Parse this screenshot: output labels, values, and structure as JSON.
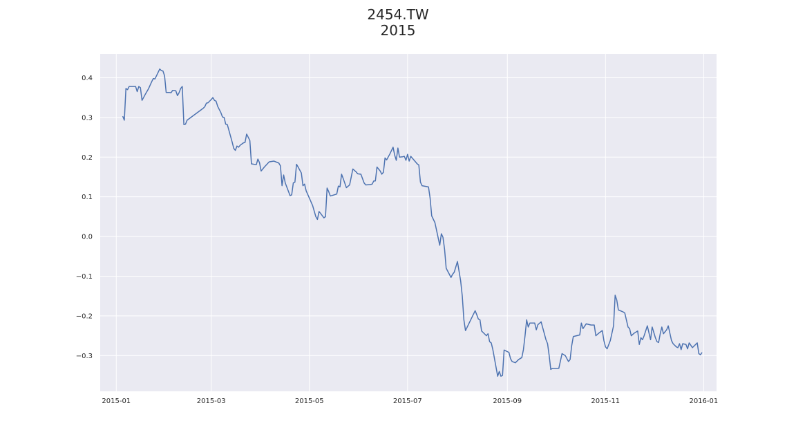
{
  "chart_data": {
    "type": "line",
    "title": "2454.TW",
    "subtitle": "2015",
    "xlabel": "",
    "ylabel": "",
    "xlim": [
      "2014-12-22",
      "2016-01-09"
    ],
    "ylim": [
      -0.39,
      0.46
    ],
    "x_ticks": [
      "2015-01",
      "2015-03",
      "2015-05",
      "2015-07",
      "2015-09",
      "2015-11",
      "2016-01"
    ],
    "y_ticks": [
      "0.4",
      "0.3",
      "0.2",
      "0.1",
      "0.0",
      "−0.1",
      "−0.2",
      "−0.3"
    ],
    "grid": true,
    "background_color": "#eaeaf2",
    "line_color": "#4c72b0",
    "series": [
      {
        "points": [
          [
            "2015-01-05",
            0.303
          ],
          [
            "2015-01-06",
            0.293
          ],
          [
            "2015-01-07",
            0.373
          ],
          [
            "2015-01-08",
            0.37
          ],
          [
            "2015-01-09",
            0.378
          ],
          [
            "2015-01-12",
            0.378
          ],
          [
            "2015-01-13",
            0.378
          ],
          [
            "2015-01-14",
            0.365
          ],
          [
            "2015-01-15",
            0.378
          ],
          [
            "2015-01-16",
            0.375
          ],
          [
            "2015-01-17",
            0.343
          ],
          [
            "2015-01-19",
            0.358
          ],
          [
            "2015-01-21",
            0.372
          ],
          [
            "2015-01-23",
            0.39
          ],
          [
            "2015-01-24",
            0.398
          ],
          [
            "2015-01-25",
            0.397
          ],
          [
            "2015-01-26",
            0.405
          ],
          [
            "2015-01-28",
            0.422
          ],
          [
            "2015-01-29",
            0.418
          ],
          [
            "2015-01-30",
            0.417
          ],
          [
            "2015-01-31",
            0.405
          ],
          [
            "2015-02-01",
            0.363
          ],
          [
            "2015-02-03",
            0.363
          ],
          [
            "2015-02-04",
            0.362
          ],
          [
            "2015-02-05",
            0.368
          ],
          [
            "2015-02-06",
            0.368
          ],
          [
            "2015-02-07",
            0.367
          ],
          [
            "2015-02-08",
            0.355
          ],
          [
            "2015-02-09",
            0.362
          ],
          [
            "2015-02-10",
            0.373
          ],
          [
            "2015-02-11",
            0.378
          ],
          [
            "2015-02-12",
            0.282
          ],
          [
            "2015-02-13",
            0.283
          ],
          [
            "2015-02-14",
            0.293
          ],
          [
            "2015-02-24",
            0.323
          ],
          [
            "2015-02-25",
            0.327
          ],
          [
            "2015-02-26",
            0.336
          ],
          [
            "2015-02-27",
            0.337
          ],
          [
            "2015-03-01",
            0.345
          ],
          [
            "2015-03-02",
            0.35
          ],
          [
            "2015-03-03",
            0.343
          ],
          [
            "2015-03-04",
            0.341
          ],
          [
            "2015-03-05",
            0.328
          ],
          [
            "2015-03-07",
            0.312
          ],
          [
            "2015-03-08",
            0.301
          ],
          [
            "2015-03-09",
            0.3
          ],
          [
            "2015-03-10",
            0.283
          ],
          [
            "2015-03-11",
            0.282
          ],
          [
            "2015-03-14",
            0.238
          ],
          [
            "2015-03-15",
            0.222
          ],
          [
            "2015-03-16",
            0.217
          ],
          [
            "2015-03-17",
            0.228
          ],
          [
            "2015-03-18",
            0.225
          ],
          [
            "2015-03-19",
            0.23
          ],
          [
            "2015-03-21",
            0.236
          ],
          [
            "2015-03-22",
            0.237
          ],
          [
            "2015-03-23",
            0.258
          ],
          [
            "2015-03-25",
            0.242
          ],
          [
            "2015-03-26",
            0.183
          ],
          [
            "2015-03-29",
            0.181
          ],
          [
            "2015-03-30",
            0.195
          ],
          [
            "2015-03-31",
            0.186
          ],
          [
            "2015-04-01",
            0.165
          ],
          [
            "2015-04-03",
            0.175
          ],
          [
            "2015-04-06",
            0.188
          ],
          [
            "2015-04-09",
            0.19
          ],
          [
            "2015-04-12",
            0.185
          ],
          [
            "2015-04-13",
            0.178
          ],
          [
            "2015-04-14",
            0.128
          ],
          [
            "2015-04-15",
            0.155
          ],
          [
            "2015-04-16",
            0.135
          ],
          [
            "2015-04-19",
            0.103
          ],
          [
            "2015-04-20",
            0.105
          ],
          [
            "2015-04-21",
            0.135
          ],
          [
            "2015-04-22",
            0.137
          ],
          [
            "2015-04-23",
            0.182
          ],
          [
            "2015-04-24",
            0.175
          ],
          [
            "2015-04-26",
            0.16
          ],
          [
            "2015-04-27",
            0.128
          ],
          [
            "2015-04-28",
            0.132
          ],
          [
            "2015-04-29",
            0.115
          ],
          [
            "2015-05-03",
            0.078
          ],
          [
            "2015-05-05",
            0.05
          ],
          [
            "2015-05-06",
            0.043
          ],
          [
            "2015-05-07",
            0.063
          ],
          [
            "2015-05-08",
            0.058
          ],
          [
            "2015-05-10",
            0.047
          ],
          [
            "2015-05-11",
            0.05
          ],
          [
            "2015-05-12",
            0.122
          ],
          [
            "2015-05-13",
            0.113
          ],
          [
            "2015-05-14",
            0.102
          ],
          [
            "2015-05-18",
            0.107
          ],
          [
            "2015-05-19",
            0.127
          ],
          [
            "2015-05-20",
            0.125
          ],
          [
            "2015-05-21",
            0.157
          ],
          [
            "2015-05-22",
            0.146
          ],
          [
            "2015-05-24",
            0.123
          ],
          [
            "2015-05-26",
            0.13
          ],
          [
            "2015-05-28",
            0.17
          ],
          [
            "2015-05-30",
            0.163
          ],
          [
            "2015-05-31",
            0.158
          ],
          [
            "2015-06-02",
            0.157
          ],
          [
            "2015-06-04",
            0.135
          ],
          [
            "2015-06-05",
            0.13
          ],
          [
            "2015-06-08",
            0.131
          ],
          [
            "2015-06-09",
            0.132
          ],
          [
            "2015-06-10",
            0.14
          ],
          [
            "2015-06-11",
            0.14
          ],
          [
            "2015-06-12",
            0.175
          ],
          [
            "2015-06-14",
            0.165
          ],
          [
            "2015-06-15",
            0.157
          ],
          [
            "2015-06-16",
            0.162
          ],
          [
            "2015-06-17",
            0.198
          ],
          [
            "2015-06-18",
            0.193
          ],
          [
            "2015-06-20",
            0.208
          ],
          [
            "2015-06-22",
            0.225
          ],
          [
            "2015-06-23",
            0.205
          ],
          [
            "2015-06-24",
            0.192
          ],
          [
            "2015-06-25",
            0.223
          ],
          [
            "2015-06-26",
            0.2
          ],
          [
            "2015-06-28",
            0.201
          ],
          [
            "2015-06-29",
            0.202
          ],
          [
            "2015-06-30",
            0.192
          ],
          [
            "2015-07-01",
            0.207
          ],
          [
            "2015-07-02",
            0.19
          ],
          [
            "2015-07-03",
            0.202
          ],
          [
            "2015-07-07",
            0.183
          ],
          [
            "2015-07-08",
            0.18
          ],
          [
            "2015-07-09",
            0.137
          ],
          [
            "2015-07-10",
            0.128
          ],
          [
            "2015-07-14",
            0.125
          ],
          [
            "2015-07-15",
            0.097
          ],
          [
            "2015-07-16",
            0.052
          ],
          [
            "2015-07-18",
            0.035
          ],
          [
            "2015-07-21",
            -0.022
          ],
          [
            "2015-07-22",
            0.007
          ],
          [
            "2015-07-23",
            -0.002
          ],
          [
            "2015-07-24",
            -0.032
          ],
          [
            "2015-07-25",
            -0.08
          ],
          [
            "2015-07-28",
            -0.103
          ],
          [
            "2015-07-29",
            -0.095
          ],
          [
            "2015-07-30",
            -0.09
          ],
          [
            "2015-08-01",
            -0.063
          ],
          [
            "2015-08-03",
            -0.112
          ],
          [
            "2015-08-04",
            -0.15
          ],
          [
            "2015-08-05",
            -0.21
          ],
          [
            "2015-08-06",
            -0.237
          ],
          [
            "2015-08-12",
            -0.187
          ],
          [
            "2015-08-13",
            -0.197
          ],
          [
            "2015-08-14",
            -0.208
          ],
          [
            "2015-08-15",
            -0.21
          ],
          [
            "2015-08-16",
            -0.238
          ],
          [
            "2015-08-19",
            -0.25
          ],
          [
            "2015-08-20",
            -0.245
          ],
          [
            "2015-08-21",
            -0.265
          ],
          [
            "2015-08-22",
            -0.268
          ],
          [
            "2015-08-23",
            -0.285
          ],
          [
            "2015-08-26",
            -0.352
          ],
          [
            "2015-08-27",
            -0.34
          ],
          [
            "2015-08-28",
            -0.352
          ],
          [
            "2015-08-29",
            -0.35
          ],
          [
            "2015-08-30",
            -0.286
          ],
          [
            "2015-09-02",
            -0.292
          ],
          [
            "2015-09-03",
            -0.308
          ],
          [
            "2015-09-04",
            -0.315
          ],
          [
            "2015-09-06",
            -0.318
          ],
          [
            "2015-09-08",
            -0.31
          ],
          [
            "2015-09-10",
            -0.305
          ],
          [
            "2015-09-11",
            -0.285
          ],
          [
            "2015-09-12",
            -0.25
          ],
          [
            "2015-09-13",
            -0.21
          ],
          [
            "2015-09-14",
            -0.228
          ],
          [
            "2015-09-15",
            -0.218
          ],
          [
            "2015-09-18",
            -0.218
          ],
          [
            "2015-09-19",
            -0.235
          ],
          [
            "2015-09-20",
            -0.222
          ],
          [
            "2015-09-22",
            -0.215
          ],
          [
            "2015-09-25",
            -0.26
          ],
          [
            "2015-09-26",
            -0.27
          ],
          [
            "2015-09-27",
            -0.3
          ],
          [
            "2015-09-28",
            -0.335
          ],
          [
            "2015-09-29",
            -0.332
          ],
          [
            "2015-10-03",
            -0.332
          ],
          [
            "2015-10-05",
            -0.295
          ],
          [
            "2015-10-07",
            -0.3
          ],
          [
            "2015-10-09",
            -0.315
          ],
          [
            "2015-10-10",
            -0.31
          ],
          [
            "2015-10-11",
            -0.275
          ],
          [
            "2015-10-12",
            -0.252
          ],
          [
            "2015-10-16",
            -0.248
          ],
          [
            "2015-10-17",
            -0.218
          ],
          [
            "2015-10-18",
            -0.232
          ],
          [
            "2015-10-20",
            -0.22
          ],
          [
            "2015-10-23",
            -0.223
          ],
          [
            "2015-10-25",
            -0.223
          ],
          [
            "2015-10-26",
            -0.25
          ],
          [
            "2015-10-28",
            -0.243
          ],
          [
            "2015-10-30",
            -0.237
          ],
          [
            "2015-10-31",
            -0.262
          ],
          [
            "2015-11-01",
            -0.278
          ],
          [
            "2015-11-02",
            -0.283
          ],
          [
            "2015-11-04",
            -0.262
          ],
          [
            "2015-11-06",
            -0.225
          ],
          [
            "2015-11-07",
            -0.148
          ],
          [
            "2015-11-08",
            -0.16
          ],
          [
            "2015-11-09",
            -0.185
          ],
          [
            "2015-11-12",
            -0.19
          ],
          [
            "2015-11-13",
            -0.193
          ],
          [
            "2015-11-15",
            -0.228
          ],
          [
            "2015-11-16",
            -0.232
          ],
          [
            "2015-11-17",
            -0.25
          ],
          [
            "2015-11-19",
            -0.243
          ],
          [
            "2015-11-21",
            -0.238
          ],
          [
            "2015-11-22",
            -0.272
          ],
          [
            "2015-11-23",
            -0.255
          ],
          [
            "2015-11-24",
            -0.26
          ],
          [
            "2015-11-25",
            -0.25
          ],
          [
            "2015-11-27",
            -0.225
          ],
          [
            "2015-11-29",
            -0.26
          ],
          [
            "2015-11-30",
            -0.228
          ],
          [
            "2015-12-02",
            -0.255
          ],
          [
            "2015-12-03",
            -0.265
          ],
          [
            "2015-12-04",
            -0.267
          ],
          [
            "2015-12-05",
            -0.245
          ],
          [
            "2015-12-06",
            -0.228
          ],
          [
            "2015-12-07",
            -0.245
          ],
          [
            "2015-12-09",
            -0.235
          ],
          [
            "2015-12-10",
            -0.225
          ],
          [
            "2015-12-12",
            -0.262
          ],
          [
            "2015-12-13",
            -0.27
          ],
          [
            "2015-12-15",
            -0.278
          ],
          [
            "2015-12-16",
            -0.28
          ],
          [
            "2015-12-17",
            -0.27
          ],
          [
            "2015-12-18",
            -0.285
          ],
          [
            "2015-12-19",
            -0.27
          ],
          [
            "2015-12-21",
            -0.272
          ],
          [
            "2015-12-22",
            -0.283
          ],
          [
            "2015-12-23",
            -0.268
          ],
          [
            "2015-12-25",
            -0.28
          ],
          [
            "2015-12-28",
            -0.268
          ],
          [
            "2015-12-29",
            -0.295
          ],
          [
            "2015-12-30",
            -0.298
          ],
          [
            "2015-12-31",
            -0.292
          ]
        ]
      }
    ]
  }
}
